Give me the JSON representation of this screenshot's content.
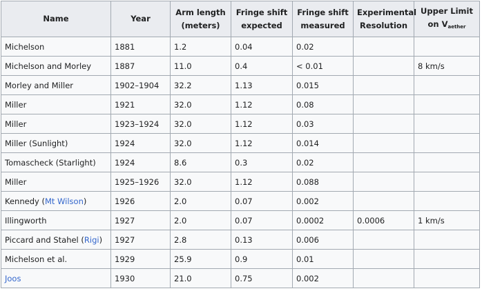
{
  "headers": {
    "name": "Name",
    "year": "Year",
    "arm_length": [
      "Arm length",
      "(meters)"
    ],
    "fringe_expected": [
      "Fringe shift",
      "expected"
    ],
    "fringe_measured": [
      "Fringe shift",
      "measured"
    ],
    "resolution": [
      "Experimental",
      "Resolution"
    ],
    "upper_limit": [
      "Upper Limit",
      "on V",
      "aether"
    ]
  },
  "rows": [
    {
      "name": "Michelson",
      "year": "1881",
      "arm": "1.2",
      "expected": "0.04",
      "measured": "0.02",
      "resolution": "",
      "limit": ""
    },
    {
      "name": "Michelson and Morley",
      "year": "1887",
      "arm": "11.0",
      "expected": "0.4",
      "measured": "< 0.01",
      "resolution": "",
      "limit": "8 km/s"
    },
    {
      "name": "Morley and Miller",
      "year": "1902–1904",
      "arm": "32.2",
      "expected": "1.13",
      "measured": "0.015",
      "resolution": "",
      "limit": ""
    },
    {
      "name": "Miller",
      "year": "1921",
      "arm": "32.0",
      "expected": "1.12",
      "measured": "0.08",
      "resolution": "",
      "limit": ""
    },
    {
      "name": "Miller",
      "year": "1923–1924",
      "arm": "32.0",
      "expected": "1.12",
      "measured": "0.03",
      "resolution": "",
      "limit": ""
    },
    {
      "name": "Miller (Sunlight)",
      "year": "1924",
      "arm": "32.0",
      "expected": "1.12",
      "measured": "0.014",
      "resolution": "",
      "limit": ""
    },
    {
      "name": "Tomascheck (Starlight)",
      "year": "1924",
      "arm": "8.6",
      "expected": "0.3",
      "measured": "0.02",
      "resolution": "",
      "limit": ""
    },
    {
      "name": "Miller",
      "year": "1925–1926",
      "arm": "32.0",
      "expected": "1.12",
      "measured": "0.088",
      "resolution": "",
      "limit": ""
    },
    {
      "name_prefix": "Kennedy (",
      "name_link": "Mt Wilson",
      "name_suffix": ")",
      "year": "1926",
      "arm": "2.0",
      "expected": "0.07",
      "measured": "0.002",
      "resolution": "",
      "limit": ""
    },
    {
      "name": "Illingworth",
      "year": "1927",
      "arm": "2.0",
      "expected": "0.07",
      "measured": "0.0002",
      "resolution": "0.0006",
      "limit": "1 km/s"
    },
    {
      "name_prefix": "Piccard and Stahel (",
      "name_link": "Rigi",
      "name_suffix": ")",
      "year": "1927",
      "arm": "2.8",
      "expected": "0.13",
      "measured": "0.006",
      "resolution": "",
      "limit": ""
    },
    {
      "name": "Michelson et al.",
      "year": "1929",
      "arm": "25.9",
      "expected": "0.9",
      "measured": "0.01",
      "resolution": "",
      "limit": ""
    },
    {
      "name_prefix": "",
      "name_link": "Joos",
      "name_suffix": "",
      "year": "1930",
      "arm": "21.0",
      "expected": "0.75",
      "measured": "0.002",
      "resolution": "",
      "limit": ""
    }
  ],
  "link_color": "#3366cc",
  "header_bg": "#eaecf0",
  "cell_bg": "#f8f9fa",
  "border_color": "#a2a9b1"
}
